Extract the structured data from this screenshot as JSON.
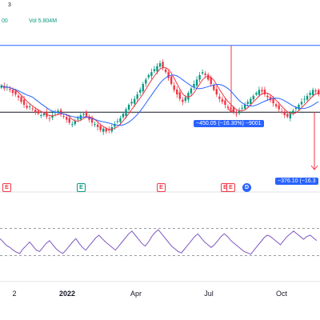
{
  "header": {
    "line1": "3",
    "line2_left": "00",
    "line2_right": "Vol 5.804M"
  },
  "measure_tags": [
    {
      "text": "−450.05 (−16.30%) −9001"
    },
    {
      "text": "−376.10 (−16.3"
    }
  ],
  "events": [
    "E",
    "E",
    "E",
    "E",
    "E",
    "D"
  ],
  "event_colors": [
    "red",
    "green",
    "red",
    "red",
    "red",
    "blue"
  ],
  "colors": {
    "up": "#089981",
    "down": "#f23645",
    "ma_fast": "#f23645",
    "ma_slow": "#2962ff",
    "rsi": "#7e57c2",
    "level": "#2962ff"
  },
  "chart_data": {
    "type": "candlestick",
    "x_ticks": [
      "2",
      "2022",
      "Apr",
      "Jul",
      "Oct"
    ],
    "price_series_approx_close": [
      2490,
      2470,
      2480,
      2460,
      2440,
      2430,
      2410,
      2380,
      2360,
      2340,
      2350,
      2330,
      2310,
      2300,
      2290,
      2300,
      2280,
      2270,
      2290,
      2310,
      2320,
      2300,
      2280,
      2260,
      2240,
      2230,
      2250,
      2270,
      2290,
      2300,
      2280,
      2260,
      2240,
      2230,
      2210,
      2190,
      2200,
      2180,
      2190,
      2210,
      2230,
      2250,
      2270,
      2300,
      2330,
      2360,
      2380,
      2400,
      2430,
      2460,
      2500,
      2530,
      2560,
      2580,
      2600,
      2620,
      2640,
      2610,
      2580,
      2540,
      2500,
      2460,
      2430,
      2400,
      2380,
      2410,
      2440,
      2470,
      2500,
      2530,
      2560,
      2580,
      2560,
      2530,
      2500,
      2460,
      2430,
      2400,
      2380,
      2360,
      2340,
      2330,
      2310,
      2300,
      2320,
      2340,
      2360,
      2380,
      2400,
      2420,
      2440,
      2460,
      2450,
      2430,
      2410,
      2390,
      2370,
      2350,
      2330,
      2310,
      2290,
      2280,
      2300,
      2320,
      2340,
      2360,
      2380,
      2400,
      2420,
      2440,
      2460,
      2450,
      2430
    ],
    "levels": [
      {
        "name": "upper",
        "value": 2760
      },
      {
        "name": "lower",
        "value": 2310
      }
    ],
    "measurements": [
      {
        "label": "−450.05 (−16.30%) −9001",
        "change": -450.05,
        "pct": -16.3,
        "ticks": -9001
      },
      {
        "label": "−376.10 (−16.3",
        "change": -376.1
      }
    ],
    "rsi_approx": [
      55,
      50,
      45,
      42,
      38,
      35,
      33,
      40,
      45,
      50,
      44,
      38,
      36,
      42,
      48,
      52,
      46,
      40,
      36,
      33,
      38,
      44,
      50,
      55,
      48,
      42,
      38,
      44,
      50,
      56,
      60,
      55,
      50,
      46,
      42,
      38,
      44,
      50,
      56,
      62,
      66,
      60,
      54,
      48,
      44,
      50,
      58,
      64,
      68,
      62,
      56,
      50,
      44,
      40,
      36,
      34,
      40,
      46,
      52,
      58,
      62,
      56,
      50,
      46,
      42,
      46,
      52,
      58,
      62,
      58,
      52,
      48,
      44,
      40,
      36,
      34,
      32,
      38,
      44,
      50,
      56,
      60,
      58,
      54,
      50,
      46,
      52,
      58,
      62,
      66,
      62,
      58,
      54,
      58,
      60,
      56,
      52
    ],
    "rsi_bands": [
      30,
      70
    ]
  }
}
